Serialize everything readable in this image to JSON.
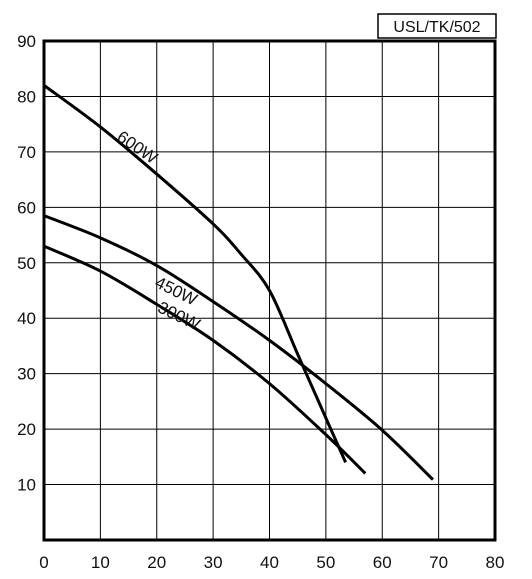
{
  "chart_data": {
    "type": "line",
    "code_label": "USL/TK/502",
    "xlim": [
      0,
      80
    ],
    "ylim": [
      0,
      90
    ],
    "x_ticks": [
      0,
      10,
      20,
      30,
      40,
      50,
      60,
      70,
      80
    ],
    "y_ticks": [
      10,
      20,
      30,
      40,
      50,
      60,
      70,
      80,
      90
    ],
    "grid": true,
    "series": [
      {
        "name": "600W",
        "label_at": [
          16,
          70
        ],
        "label_angle_deg": 34,
        "points": [
          [
            0,
            82
          ],
          [
            10,
            74.5
          ],
          [
            20,
            66
          ],
          [
            30,
            57
          ],
          [
            35,
            51.5
          ],
          [
            40,
            45
          ],
          [
            45,
            33.5
          ],
          [
            50,
            22
          ],
          [
            53.5,
            14
          ]
        ]
      },
      {
        "name": "450W",
        "label_at": [
          23,
          44
        ],
        "label_angle_deg": 26,
        "points": [
          [
            0,
            58.5
          ],
          [
            10,
            54.5
          ],
          [
            20,
            49.5
          ],
          [
            30,
            43
          ],
          [
            40,
            36
          ],
          [
            50,
            28.2
          ],
          [
            60,
            19.8
          ],
          [
            69,
            10.9
          ]
        ]
      },
      {
        "name": "300W",
        "label_at": [
          23.5,
          39.5
        ],
        "label_angle_deg": 26,
        "points": [
          [
            0,
            53
          ],
          [
            10,
            48.5
          ],
          [
            20,
            42.5
          ],
          [
            30,
            36
          ],
          [
            40,
            28.2
          ],
          [
            50,
            19
          ],
          [
            57,
            12
          ]
        ]
      }
    ]
  }
}
